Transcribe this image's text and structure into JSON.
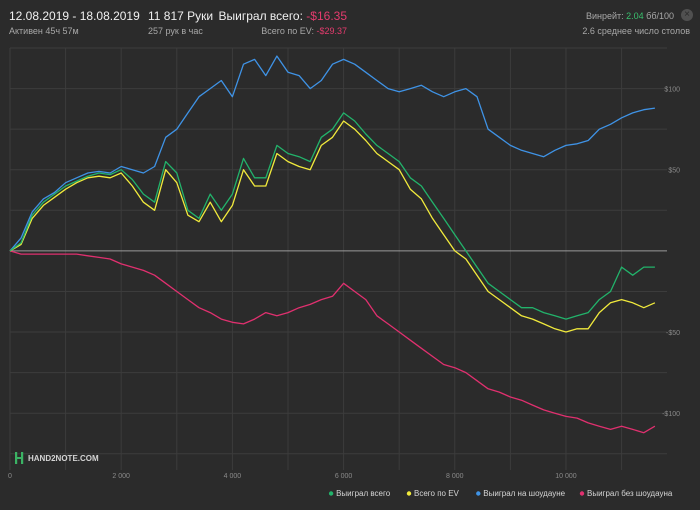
{
  "header": {
    "date_range": "12.08.2019 - 18.08.2019",
    "active_time": "Активен 45ч 57м",
    "hands": "11 817 Руки",
    "hands_per_hour": "257 рук в час",
    "won_label": "Выиграл всего:",
    "won_value": "-$16.35",
    "ev_label": "Всего по EV:",
    "ev_value": "-$29.37",
    "winrate_label": "Винрейт:",
    "winrate_value": "2.04",
    "winrate_unit": "бб/100",
    "tables_text": "2.6 среднее число столов",
    "close_symbol": "×"
  },
  "logo": {
    "text": "HAND2NOTE.COM"
  },
  "colors": {
    "background": "#2b2b2b",
    "grid": "#3c3c3c",
    "zero_line": "#9a9a9a",
    "won": "#22b36b",
    "ev": "#f1ea3c",
    "showdown": "#3f93e6",
    "no_showdown": "#e0306f"
  },
  "chart_data": {
    "type": "line",
    "title": "",
    "xlabel": "",
    "ylabel": "",
    "xlim": [
      0,
      11817
    ],
    "ylim": [
      -135,
      125
    ],
    "x_ticks": [
      0,
      2000,
      4000,
      6000,
      8000,
      10000
    ],
    "x_tick_labels": [
      "0",
      "2 000",
      "4 000",
      "6 000",
      "8 000",
      "10 000"
    ],
    "y_ticks": [
      100,
      50,
      0,
      -50,
      -100
    ],
    "y_tick_labels": [
      "$100",
      "$50",
      "",
      "-$50",
      "-$100"
    ],
    "grid": true,
    "legend_position": "bottom-right",
    "series": [
      {
        "name": "Выиграл всего",
        "color_key": "won",
        "x": [
          0,
          200,
          400,
          600,
          800,
          1000,
          1200,
          1400,
          1600,
          1800,
          2000,
          2200,
          2400,
          2600,
          2800,
          3000,
          3200,
          3400,
          3600,
          3800,
          4000,
          4200,
          4400,
          4600,
          4800,
          5000,
          5200,
          5400,
          5600,
          5800,
          6000,
          6200,
          6400,
          6600,
          6800,
          7000,
          7200,
          7400,
          7600,
          7800,
          8000,
          8200,
          8400,
          8600,
          8800,
          9000,
          9200,
          9400,
          9600,
          9800,
          10000,
          10200,
          10400,
          10600,
          10800,
          11000,
          11200,
          11400,
          11600
        ],
        "values": [
          0,
          5,
          22,
          30,
          35,
          40,
          43,
          46,
          48,
          47,
          50,
          44,
          35,
          30,
          55,
          48,
          25,
          20,
          35,
          25,
          35,
          57,
          45,
          45,
          65,
          60,
          58,
          55,
          70,
          75,
          85,
          80,
          72,
          65,
          60,
          55,
          45,
          40,
          30,
          20,
          10,
          0,
          -10,
          -20,
          -25,
          -30,
          -35,
          -35,
          -38,
          -40,
          -42,
          -40,
          -38,
          -30,
          -25,
          -10,
          -15,
          -10,
          -10
        ]
      },
      {
        "name": "Всего по EV",
        "color_key": "ev",
        "x": [
          0,
          200,
          400,
          600,
          800,
          1000,
          1200,
          1400,
          1600,
          1800,
          2000,
          2200,
          2400,
          2600,
          2800,
          3000,
          3200,
          3400,
          3600,
          3800,
          4000,
          4200,
          4400,
          4600,
          4800,
          5000,
          5200,
          5400,
          5600,
          5800,
          6000,
          6200,
          6400,
          6600,
          6800,
          7000,
          7200,
          7400,
          7600,
          7800,
          8000,
          8200,
          8400,
          8600,
          8800,
          9000,
          9200,
          9400,
          9600,
          9800,
          10000,
          10200,
          10400,
          10600,
          10800,
          11000,
          11200,
          11400,
          11600
        ],
        "values": [
          0,
          4,
          20,
          28,
          33,
          38,
          42,
          45,
          46,
          45,
          48,
          40,
          30,
          25,
          50,
          42,
          22,
          18,
          30,
          18,
          28,
          50,
          40,
          40,
          60,
          55,
          52,
          50,
          65,
          70,
          80,
          75,
          68,
          60,
          55,
          50,
          38,
          32,
          20,
          10,
          0,
          -5,
          -15,
          -25,
          -30,
          -35,
          -40,
          -42,
          -45,
          -48,
          -50,
          -48,
          -48,
          -38,
          -32,
          -30,
          -32,
          -35,
          -32
        ]
      },
      {
        "name": "Выиграл на шоудауне",
        "color_key": "showdown",
        "x": [
          0,
          200,
          400,
          600,
          800,
          1000,
          1200,
          1400,
          1600,
          1800,
          2000,
          2200,
          2400,
          2600,
          2800,
          3000,
          3200,
          3400,
          3600,
          3800,
          4000,
          4200,
          4400,
          4600,
          4800,
          5000,
          5200,
          5400,
          5600,
          5800,
          6000,
          6200,
          6400,
          6600,
          6800,
          7000,
          7200,
          7400,
          7600,
          7800,
          8000,
          8200,
          8400,
          8600,
          8800,
          9000,
          9200,
          9400,
          9600,
          9800,
          10000,
          10200,
          10400,
          10600,
          10800,
          11000,
          11200,
          11400,
          11600
        ],
        "values": [
          0,
          8,
          24,
          32,
          36,
          42,
          45,
          48,
          49,
          48,
          52,
          50,
          48,
          52,
          70,
          75,
          85,
          95,
          100,
          105,
          95,
          115,
          118,
          108,
          120,
          110,
          108,
          100,
          105,
          115,
          118,
          115,
          110,
          105,
          100,
          98,
          100,
          102,
          98,
          95,
          98,
          100,
          95,
          75,
          70,
          65,
          62,
          60,
          58,
          62,
          65,
          66,
          68,
          75,
          78,
          82,
          85,
          87,
          88
        ]
      },
      {
        "name": "Выиграл без шоудауна",
        "color_key": "no_showdown",
        "x": [
          0,
          200,
          400,
          600,
          800,
          1000,
          1200,
          1400,
          1600,
          1800,
          2000,
          2200,
          2400,
          2600,
          2800,
          3000,
          3200,
          3400,
          3600,
          3800,
          4000,
          4200,
          4400,
          4600,
          4800,
          5000,
          5200,
          5400,
          5600,
          5800,
          6000,
          6200,
          6400,
          6600,
          6800,
          7000,
          7200,
          7400,
          7600,
          7800,
          8000,
          8200,
          8400,
          8600,
          8800,
          9000,
          9200,
          9400,
          9600,
          9800,
          10000,
          10200,
          10400,
          10600,
          10800,
          11000,
          11200,
          11400,
          11600
        ],
        "values": [
          0,
          -2,
          -2,
          -2,
          -2,
          -2,
          -2,
          -3,
          -4,
          -5,
          -8,
          -10,
          -12,
          -15,
          -20,
          -25,
          -30,
          -35,
          -38,
          -42,
          -44,
          -45,
          -42,
          -38,
          -40,
          -38,
          -35,
          -33,
          -30,
          -28,
          -20,
          -25,
          -30,
          -40,
          -45,
          -50,
          -55,
          -60,
          -65,
          -70,
          -72,
          -75,
          -80,
          -85,
          -87,
          -90,
          -92,
          -95,
          -98,
          -100,
          -102,
          -103,
          -106,
          -108,
          -110,
          -108,
          -110,
          -112,
          -108
        ]
      }
    ]
  }
}
